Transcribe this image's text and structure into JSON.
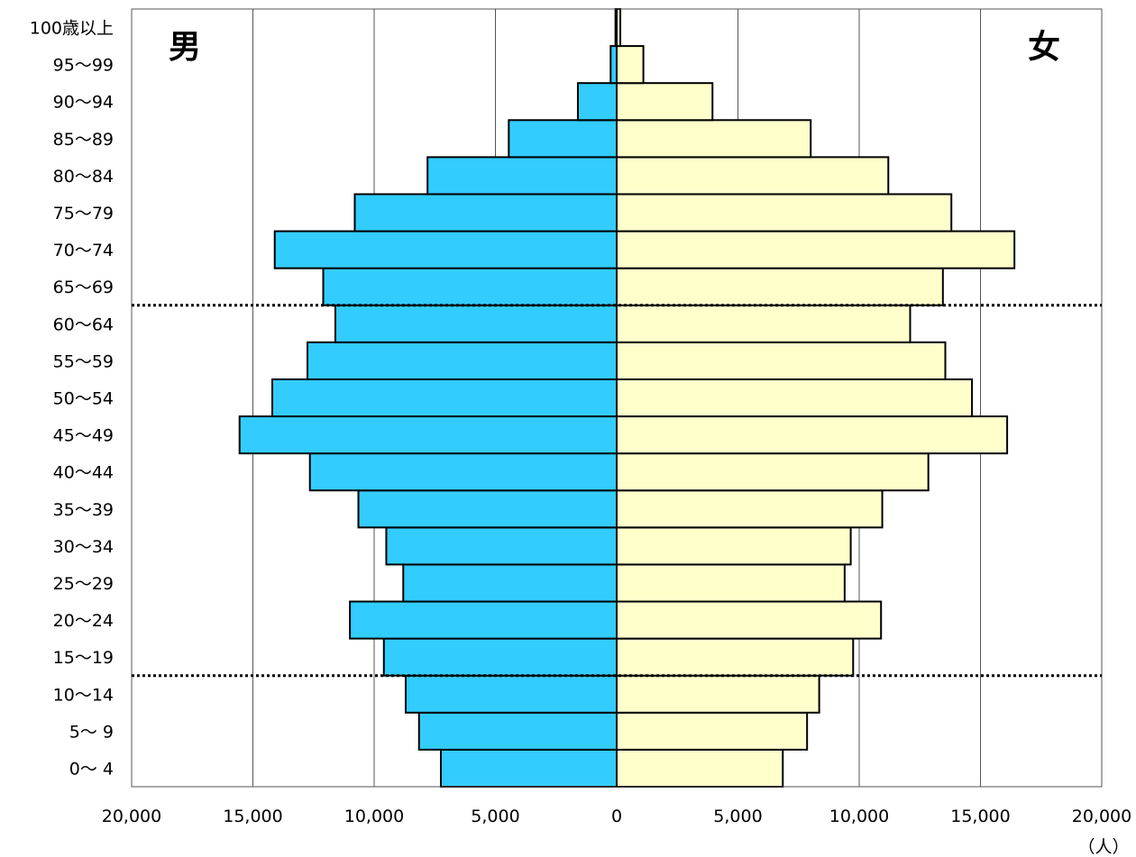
{
  "chart_data": {
    "type": "bar",
    "orientation": "horizontal",
    "categories": [
      "0〜 4",
      "5〜 9",
      "10〜14",
      "15〜19",
      "20〜24",
      "25〜29",
      "30〜34",
      "35〜39",
      "40〜44",
      "45〜49",
      "50〜54",
      "55〜59",
      "60〜64",
      "65〜69",
      "70〜74",
      "75〜79",
      "80〜84",
      "85〜89",
      "90〜94",
      "95〜99",
      "100歳以上"
    ],
    "series": [
      {
        "name": "男",
        "color": "#33ccff",
        "values": [
          7250,
          8150,
          8700,
          9600,
          11000,
          8800,
          9500,
          10650,
          12650,
          15550,
          14200,
          12750,
          11600,
          12100,
          14100,
          10800,
          7800,
          4450,
          1600,
          250,
          50
        ]
      },
      {
        "name": "女",
        "color": "#ffffcc",
        "values": [
          6850,
          7850,
          8350,
          9750,
          10900,
          9400,
          9650,
          10950,
          12850,
          16100,
          14650,
          13550,
          12100,
          13450,
          16400,
          13800,
          11200,
          8000,
          3950,
          1100,
          150
        ]
      }
    ],
    "xaxis_ticks": [
      "20,000",
      "15,000",
      "10,000",
      "5,000",
      "0",
      "5,000",
      "10,000",
      "15,000",
      "20,000"
    ],
    "xlim": [
      -20000,
      20000
    ],
    "unit_label": "（人）",
    "grid": true,
    "dotted_separators_after": [
      "10〜14",
      "60〜64"
    ]
  }
}
